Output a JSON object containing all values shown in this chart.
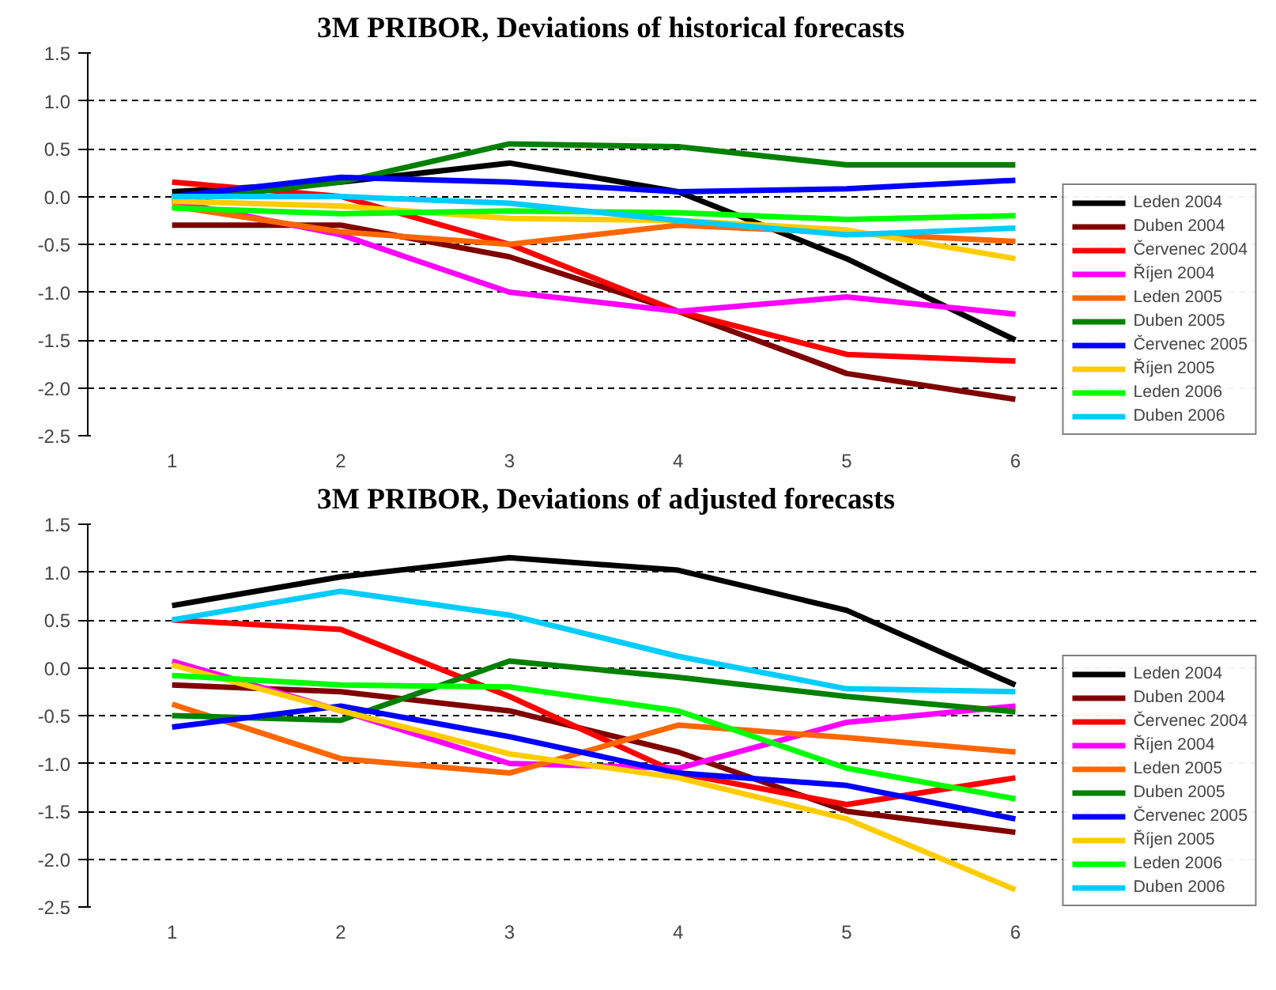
{
  "chart_data": [
    {
      "type": "line",
      "title": "3M PRIBOR, Deviations of historical forecasts",
      "categories": [
        "1",
        "2",
        "3",
        "4",
        "5",
        "6"
      ],
      "ylim": [
        -2.5,
        1.5
      ],
      "yticks": [
        -2.5,
        {
          "value": -2,
          "label": "-2.0"
        },
        -1.5,
        {
          "value": -1,
          "label": "-1.0"
        },
        -0.5,
        {
          "value": 0,
          "label": "0.0"
        },
        0.5,
        {
          "value": 1,
          "label": "1.0"
        },
        1.5
      ],
      "grid": "y",
      "legend": "right",
      "marker": "none",
      "line_style": "solid",
      "series": [
        {
          "name": "Leden 2004",
          "color": "#000000",
          "values": [
            0.05,
            0.15,
            0.35,
            0.05,
            -0.65,
            -1.5
          ]
        },
        {
          "name": "Duben 2004",
          "color": "#800000",
          "values": [
            -0.3,
            -0.3,
            -0.63,
            -1.2,
            -1.85,
            -2.12
          ]
        },
        {
          "name": "Červenec 2004",
          "color": "#ff0000",
          "values": [
            0.15,
            0.0,
            -0.5,
            -1.2,
            -1.65,
            -1.72
          ]
        },
        {
          "name": "Říjen 2004",
          "color": "#ff00ff",
          "values": [
            -0.05,
            -0.4,
            -1.0,
            -1.2,
            -1.05,
            -1.23
          ]
        },
        {
          "name": "Leden 2005",
          "color": "#ff6600",
          "values": [
            -0.1,
            -0.37,
            -0.5,
            -0.3,
            -0.38,
            -0.47
          ]
        },
        {
          "name": "Duben 2005",
          "color": "#008000",
          "values": [
            -0.05,
            0.15,
            0.55,
            0.52,
            0.33,
            0.33
          ]
        },
        {
          "name": "Červenec 2005",
          "color": "#0000ff",
          "values": [
            0.0,
            0.2,
            0.15,
            0.05,
            0.08,
            0.17
          ]
        },
        {
          "name": "Říjen 2005",
          "color": "#ffcc00",
          "values": [
            -0.05,
            -0.1,
            -0.23,
            -0.25,
            -0.35,
            -0.65
          ]
        },
        {
          "name": "Leden 2006",
          "color": "#00ff00",
          "values": [
            -0.12,
            -0.18,
            -0.15,
            -0.17,
            -0.24,
            -0.2
          ]
        },
        {
          "name": "Duben 2006",
          "color": "#00ccff",
          "values": [
            0.0,
            0.0,
            -0.07,
            -0.25,
            -0.4,
            -0.33
          ]
        }
      ]
    },
    {
      "type": "line",
      "title": "3M PRIBOR, Deviations of adjusted forecasts",
      "categories": [
        "1",
        "2",
        "3",
        "4",
        "5",
        "6"
      ],
      "ylim": [
        -2.5,
        1.5
      ],
      "yticks": [
        -2.5,
        {
          "value": -2,
          "label": "-2.0"
        },
        -1.5,
        {
          "value": -1,
          "label": "-1.0"
        },
        -0.5,
        {
          "value": 0,
          "label": "0.0"
        },
        0.5,
        {
          "value": 1,
          "label": "1.0"
        },
        1.5
      ],
      "grid": "y",
      "legend": "right",
      "marker": "none",
      "line_style": "solid",
      "series": [
        {
          "name": "Leden 2004",
          "color": "#000000",
          "values": [
            0.65,
            0.95,
            1.15,
            1.02,
            0.6,
            -0.18
          ]
        },
        {
          "name": "Duben 2004",
          "color": "#800000",
          "values": [
            -0.18,
            -0.25,
            -0.45,
            -0.88,
            -1.5,
            -1.72
          ]
        },
        {
          "name": "Červenec 2004",
          "color": "#ff0000",
          "values": [
            0.5,
            0.4,
            -0.3,
            -1.1,
            -1.43,
            -1.15
          ]
        },
        {
          "name": "Říjen 2004",
          "color": "#ff00ff",
          "values": [
            0.07,
            -0.45,
            -1.0,
            -1.05,
            -0.57,
            -0.4
          ]
        },
        {
          "name": "Leden 2005",
          "color": "#ff6600",
          "values": [
            -0.38,
            -0.95,
            -1.1,
            -0.6,
            -0.73,
            -0.88
          ]
        },
        {
          "name": "Duben 2005",
          "color": "#008000",
          "values": [
            -0.5,
            -0.55,
            0.07,
            -0.1,
            -0.3,
            -0.46
          ]
        },
        {
          "name": "Červenec 2005",
          "color": "#0000ff",
          "values": [
            -0.62,
            -0.4,
            -0.72,
            -1.1,
            -1.23,
            -1.58
          ]
        },
        {
          "name": "Říjen 2005",
          "color": "#ffcc00",
          "values": [
            0.03,
            -0.45,
            -0.9,
            -1.15,
            -1.58,
            -2.32
          ]
        },
        {
          "name": "Leden 2006",
          "color": "#00ff00",
          "values": [
            -0.08,
            -0.18,
            -0.2,
            -0.45,
            -1.05,
            -1.37
          ]
        },
        {
          "name": "Duben 2006",
          "color": "#00ccff",
          "values": [
            0.5,
            0.8,
            0.55,
            0.12,
            -0.22,
            -0.25
          ]
        }
      ]
    }
  ]
}
